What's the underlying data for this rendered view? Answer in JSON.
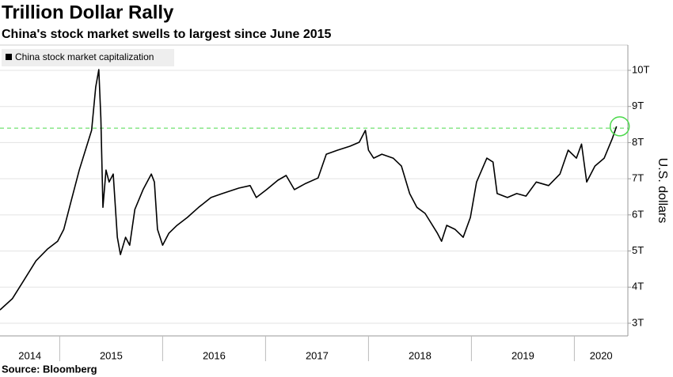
{
  "chart_data": {
    "type": "line",
    "title": "Trillion Dollar Rally",
    "subtitle": "China's stock market swells to largest since June 2015",
    "y_label": "U.S. dollars",
    "source": "Source: Bloomberg",
    "grid": true,
    "legend": "top-left",
    "xlim": [
      2014.42,
      2020.52
    ],
    "xticks": [
      {
        "value": 2014,
        "label": "2014"
      },
      {
        "value": 2015,
        "label": "2015"
      },
      {
        "value": 2016,
        "label": "2016"
      },
      {
        "value": 2017,
        "label": "2017"
      },
      {
        "value": 2018,
        "label": "2018"
      },
      {
        "value": 2019,
        "label": "2019"
      },
      {
        "value": 2020,
        "label": "2020"
      }
    ],
    "ylim": [
      2.65,
      10.7
    ],
    "yticks": [
      {
        "value": 3,
        "label": "3T"
      },
      {
        "value": 4,
        "label": "4T"
      },
      {
        "value": 5,
        "label": "5T"
      },
      {
        "value": 6,
        "label": "6T"
      },
      {
        "value": 7,
        "label": "7T"
      },
      {
        "value": 8,
        "label": "8T"
      },
      {
        "value": 9,
        "label": "9T"
      },
      {
        "value": 10,
        "label": "10T"
      }
    ],
    "reference_line": {
      "value": 8.4,
      "color": "#4cd94c"
    },
    "highlight_color": "#4cd94c",
    "series": [
      {
        "name": "China stock market capitalization",
        "color": "#000000",
        "x": [
          2014.42,
          2014.54,
          2014.65,
          2014.77,
          2014.88,
          2014.98,
          2015.04,
          2015.12,
          2015.19,
          2015.25,
          2015.31,
          2015.35,
          2015.38,
          2015.4,
          2015.42,
          2015.45,
          2015.48,
          2015.52,
          2015.56,
          2015.59,
          2015.64,
          2015.68,
          2015.73,
          2015.81,
          2015.89,
          2015.92,
          2015.95,
          2016.0,
          2016.06,
          2016.14,
          2016.24,
          2016.35,
          2016.47,
          2016.58,
          2016.74,
          2016.85,
          2016.91,
          2017.01,
          2017.12,
          2017.2,
          2017.28,
          2017.39,
          2017.51,
          2017.59,
          2017.7,
          2017.82,
          2017.91,
          2017.97,
          2018.0,
          2018.05,
          2018.13,
          2018.24,
          2018.32,
          2018.4,
          2018.47,
          2018.55,
          2018.67,
          2018.71,
          2018.76,
          2018.84,
          2018.92,
          2018.99,
          2019.05,
          2019.15,
          2019.21,
          2019.25,
          2019.35,
          2019.44,
          2019.53,
          2019.63,
          2019.75,
          2019.86,
          2019.94,
          2020.02,
          2020.07,
          2020.12,
          2020.2,
          2020.29,
          2020.37,
          2020.41
        ],
        "values": [
          3.37,
          3.68,
          4.18,
          4.73,
          5.05,
          5.27,
          5.6,
          6.48,
          7.24,
          7.79,
          8.34,
          9.54,
          10.02,
          8.67,
          6.21,
          7.24,
          6.91,
          7.13,
          5.38,
          4.9,
          5.38,
          5.16,
          6.15,
          6.7,
          7.13,
          6.91,
          5.6,
          5.16,
          5.49,
          5.71,
          5.93,
          6.21,
          6.48,
          6.59,
          6.74,
          6.81,
          6.48,
          6.7,
          6.96,
          7.09,
          6.7,
          6.87,
          7.02,
          7.68,
          7.79,
          7.9,
          8.01,
          8.34,
          7.79,
          7.57,
          7.68,
          7.57,
          7.35,
          6.59,
          6.21,
          6.04,
          5.49,
          5.27,
          5.71,
          5.6,
          5.38,
          5.93,
          6.91,
          7.57,
          7.46,
          6.59,
          6.48,
          6.59,
          6.52,
          6.91,
          6.81,
          7.13,
          7.79,
          7.57,
          7.96,
          6.91,
          7.35,
          7.57,
          8.12,
          8.45
        ]
      }
    ]
  }
}
